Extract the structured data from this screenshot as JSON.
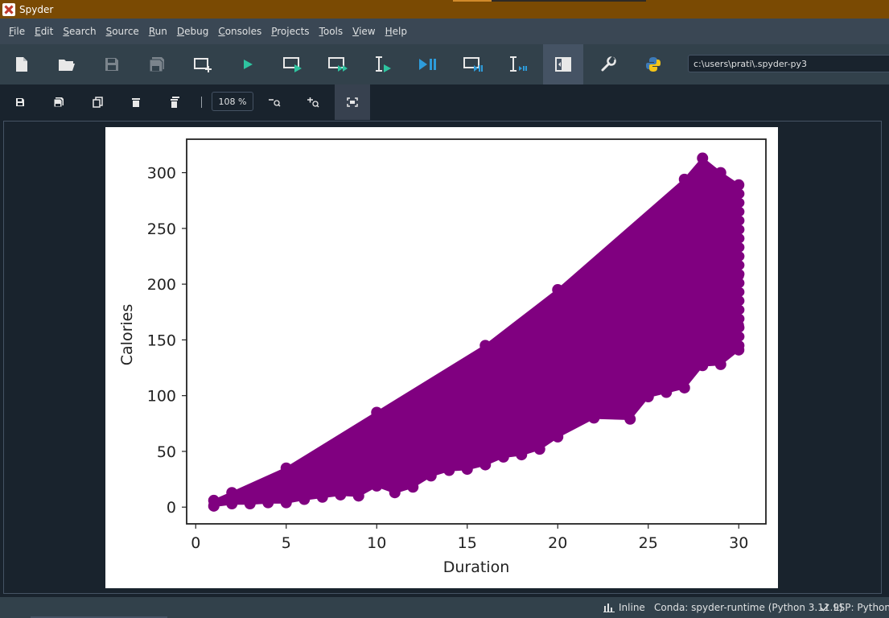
{
  "window": {
    "title": "Spyder",
    "app_icon": "spyder-icon"
  },
  "menu": [
    {
      "key": "F",
      "rest": "ile"
    },
    {
      "key": "E",
      "rest": "dit"
    },
    {
      "key": "S",
      "rest": "earch"
    },
    {
      "key": "S",
      "rest": "ource"
    },
    {
      "key": "R",
      "rest": "un"
    },
    {
      "key": "D",
      "rest": "ebug"
    },
    {
      "key": "C",
      "rest": "onsoles"
    },
    {
      "key": "P",
      "rest": "rojects"
    },
    {
      "key": "T",
      "rest": "ools"
    },
    {
      "key": "V",
      "rest": "iew"
    },
    {
      "key": "H",
      "rest": "elp"
    }
  ],
  "toolbar": {
    "working_directory": "c:\\users\\prati\\.spyder-py3",
    "icons": [
      "new-file-icon",
      "open-file-icon",
      "save-file-icon",
      "save-all-icon",
      "new-cell-icon",
      "run-file-icon",
      "run-cell-icon",
      "run-cell-advance-icon",
      "run-selection-icon",
      "debug-icon",
      "debug-cell-icon",
      "debug-selection-icon",
      "maximize-pane-icon",
      "preferences-icon",
      "python-path-icon"
    ],
    "colors": {
      "run": "#2ec4a0",
      "debug": "#2d9cdb"
    }
  },
  "plots_toolbar": {
    "zoom_value": "108 %",
    "icons": [
      "save-plot-icon",
      "save-all-plots-icon",
      "copy-plot-icon",
      "remove-plot-icon",
      "remove-all-plots-icon",
      "zoom-out-icon",
      "zoom-in-icon",
      "fit-plot-icon"
    ]
  },
  "chart_data": {
    "type": "line",
    "xlabel": "Duration",
    "ylabel": "Calories",
    "xlim": [
      -0.5,
      31.5
    ],
    "ylim": [
      -15,
      330
    ],
    "xticks": [
      0,
      5,
      10,
      15,
      20,
      25,
      30
    ],
    "yticks": [
      0,
      50,
      100,
      150,
      200,
      250,
      300
    ],
    "color": "#800080",
    "marker": "o",
    "grid": false,
    "legend": false,
    "series_summary": "many overlapping series; each line starts near Duration 1 and ends near Duration 30",
    "lower_envelope": [
      [
        1,
        1
      ],
      [
        2,
        3
      ],
      [
        3,
        3
      ],
      [
        4,
        4
      ],
      [
        5,
        4
      ],
      [
        6,
        7
      ],
      [
        7,
        9
      ],
      [
        8,
        11
      ],
      [
        9,
        10
      ],
      [
        10,
        19
      ],
      [
        11,
        13
      ],
      [
        12,
        18
      ],
      [
        13,
        28
      ],
      [
        14,
        33
      ],
      [
        15,
        34
      ],
      [
        16,
        38
      ],
      [
        17,
        45
      ],
      [
        18,
        47
      ],
      [
        19,
        52
      ],
      [
        20,
        63
      ],
      [
        22,
        80
      ],
      [
        24,
        79
      ],
      [
        25,
        99
      ],
      [
        26,
        103
      ],
      [
        27,
        107
      ],
      [
        28,
        127
      ],
      [
        29,
        128
      ],
      [
        30,
        141
      ]
    ],
    "upper_envelope": [
      [
        1,
        6
      ],
      [
        2,
        13
      ],
      [
        5,
        35
      ],
      [
        10,
        85
      ],
      [
        16,
        145
      ],
      [
        20,
        195
      ],
      [
        27,
        294
      ],
      [
        28,
        313
      ],
      [
        29,
        300
      ],
      [
        30,
        289
      ]
    ]
  },
  "status": {
    "inline_label": "Inline",
    "conda": "Conda: spyder-runtime (Python 3.11.9)",
    "lsp": "LSP: Python"
  }
}
